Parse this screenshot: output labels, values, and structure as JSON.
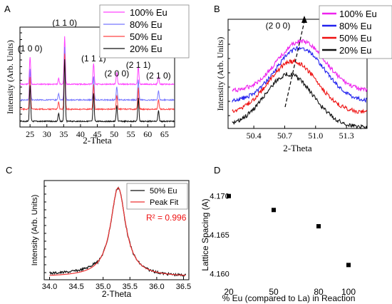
{
  "panels": [
    {
      "letter": "A",
      "chart_data": {
        "type": "line",
        "xlabel": "2-Theta",
        "ylabel": "Intensity (Arb. Units)",
        "xlim": [
          22,
          68
        ],
        "x_ticks": [
          25,
          30,
          35,
          40,
          45,
          50,
          55,
          60,
          65
        ],
        "legend_position": "top-right",
        "series": [
          {
            "name": "100% Eu",
            "color": "#ff44ff"
          },
          {
            "name": "80% Eu",
            "color": "#7777ff"
          },
          {
            "name": "50% Eu",
            "color": "#ff4444"
          },
          {
            "name": "20% Eu",
            "color": "#111111"
          }
        ],
        "peaks": [
          {
            "x": 25.0,
            "height": 0.55,
            "label": "(1 0 0)"
          },
          {
            "x": 35.3,
            "height": 0.95,
            "label": "(1 1 0)"
          },
          {
            "x": 43.9,
            "height": 0.42,
            "label": "(1 1 1)"
          },
          {
            "x": 50.8,
            "height": 0.24,
            "label": "(2 0 0)"
          },
          {
            "x": 57.2,
            "height": 0.36,
            "label": "(2 1 1)"
          },
          {
            "x": 63.2,
            "height": 0.16,
            "label": "(2 1 0)"
          },
          {
            "x": 33.5,
            "height": 0.12,
            "label": ""
          }
        ]
      }
    },
    {
      "letter": "B",
      "chart_data": {
        "type": "line",
        "xlabel": "2-Theta",
        "ylabel": "Intensity (Arb. Units)",
        "xlim": [
          50.15,
          51.5
        ],
        "x_ticks": [
          50.4,
          50.7,
          51.0,
          51.3
        ],
        "x_tick_labels": [
          "50.4",
          "50.7",
          "51.0",
          "51.3"
        ],
        "legend_position": "top-right",
        "annotation": "(2 0 0)",
        "series": [
          {
            "name": "100% Eu",
            "color": "#ee22ee",
            "peak_x": 50.86
          },
          {
            "name": "80% Eu",
            "color": "#2222ee",
            "peak_x": 50.85
          },
          {
            "name": "50% Eu",
            "color": "#ee1111",
            "peak_x": 50.78
          },
          {
            "name": "20% Eu",
            "color": "#111111",
            "peak_x": 50.74
          }
        ]
      }
    },
    {
      "letter": "C",
      "chart_data": {
        "type": "line",
        "xlabel": "2-Theta",
        "ylabel": "Intensity (Arb. Units)",
        "xlim": [
          33.9,
          36.6
        ],
        "x_ticks": [
          34.0,
          34.5,
          35.0,
          35.5,
          36.0,
          36.5
        ],
        "x_tick_labels": [
          "34.0",
          "34.5",
          "35.0",
          "35.5",
          "36.0",
          "36.5"
        ],
        "legend_position": "top-right",
        "annotation": "R² = 0.996",
        "annotation_color": "#ee1111",
        "peak_x": 35.28,
        "series": [
          {
            "name": "50% Eu",
            "color": "#111111"
          },
          {
            "name": "Peak Fit",
            "color": "#ee3333"
          }
        ]
      }
    },
    {
      "letter": "D",
      "chart_data": {
        "type": "scatter",
        "xlabel": "% Eu (compared to La) in Reaction",
        "ylabel": "Lattice Spacing (A)",
        "xlim": [
          10,
          110
        ],
        "ylim": [
          4.158,
          4.172
        ],
        "x_ticks": [
          20,
          50,
          80,
          100
        ],
        "y_ticks": [
          4.16,
          4.165,
          4.17
        ],
        "y_tick_labels": [
          "4.160",
          "4.165",
          "4.170"
        ],
        "x": [
          20,
          50,
          80,
          100
        ],
        "y": [
          4.17,
          4.1682,
          4.1661,
          4.1611
        ]
      }
    }
  ]
}
